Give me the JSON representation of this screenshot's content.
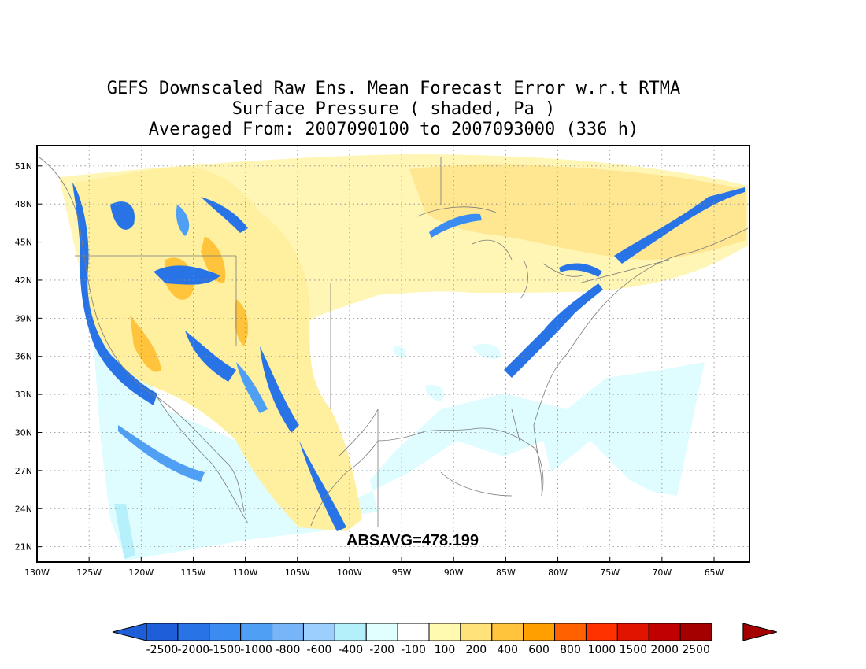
{
  "title": {
    "line1": "GEFS Downscaled Raw Ens. Mean Forecast Error w.r.t RTMA",
    "line2": "Surface Pressure ( shaded, Pa )",
    "line3": "Averaged From: 2007090100 to 2007093000 (336 h)"
  },
  "annotation": "ABSAVG=478.199",
  "axes": {
    "lat_labels": [
      "51N",
      "48N",
      "45N",
      "42N",
      "39N",
      "36N",
      "33N",
      "30N",
      "27N",
      "24N",
      "21N"
    ],
    "lat_values": [
      51,
      48,
      45,
      42,
      39,
      36,
      33,
      30,
      27,
      24,
      21
    ],
    "lon_labels": [
      "130W",
      "125W",
      "120W",
      "115W",
      "110W",
      "105W",
      "100W",
      "95W",
      "90W",
      "85W",
      "80W",
      "75W",
      "70W",
      "65W"
    ],
    "lon_values": [
      130,
      125,
      120,
      115,
      110,
      105,
      100,
      95,
      90,
      85,
      80,
      75,
      70,
      65
    ]
  },
  "colorbar": {
    "labels": [
      "-2500",
      "-2000",
      "-1500",
      "-1000",
      "-800",
      "-600",
      "-400",
      "-200",
      "-100",
      "100",
      "200",
      "400",
      "600",
      "800",
      "1000",
      "1500",
      "2000",
      "2500"
    ],
    "colors": [
      "#1e5ed8",
      "#2874e6",
      "#3a8cf2",
      "#4f9ff5",
      "#78b4f8",
      "#9ccffb",
      "#b4f0fa",
      "#e1ffff",
      "#ffffff",
      "#fffab0",
      "#ffe27a",
      "#ffc43c",
      "#ffa000",
      "#ff6000",
      "#ff3200",
      "#e11400",
      "#c00000",
      "#a50000"
    ]
  }
}
